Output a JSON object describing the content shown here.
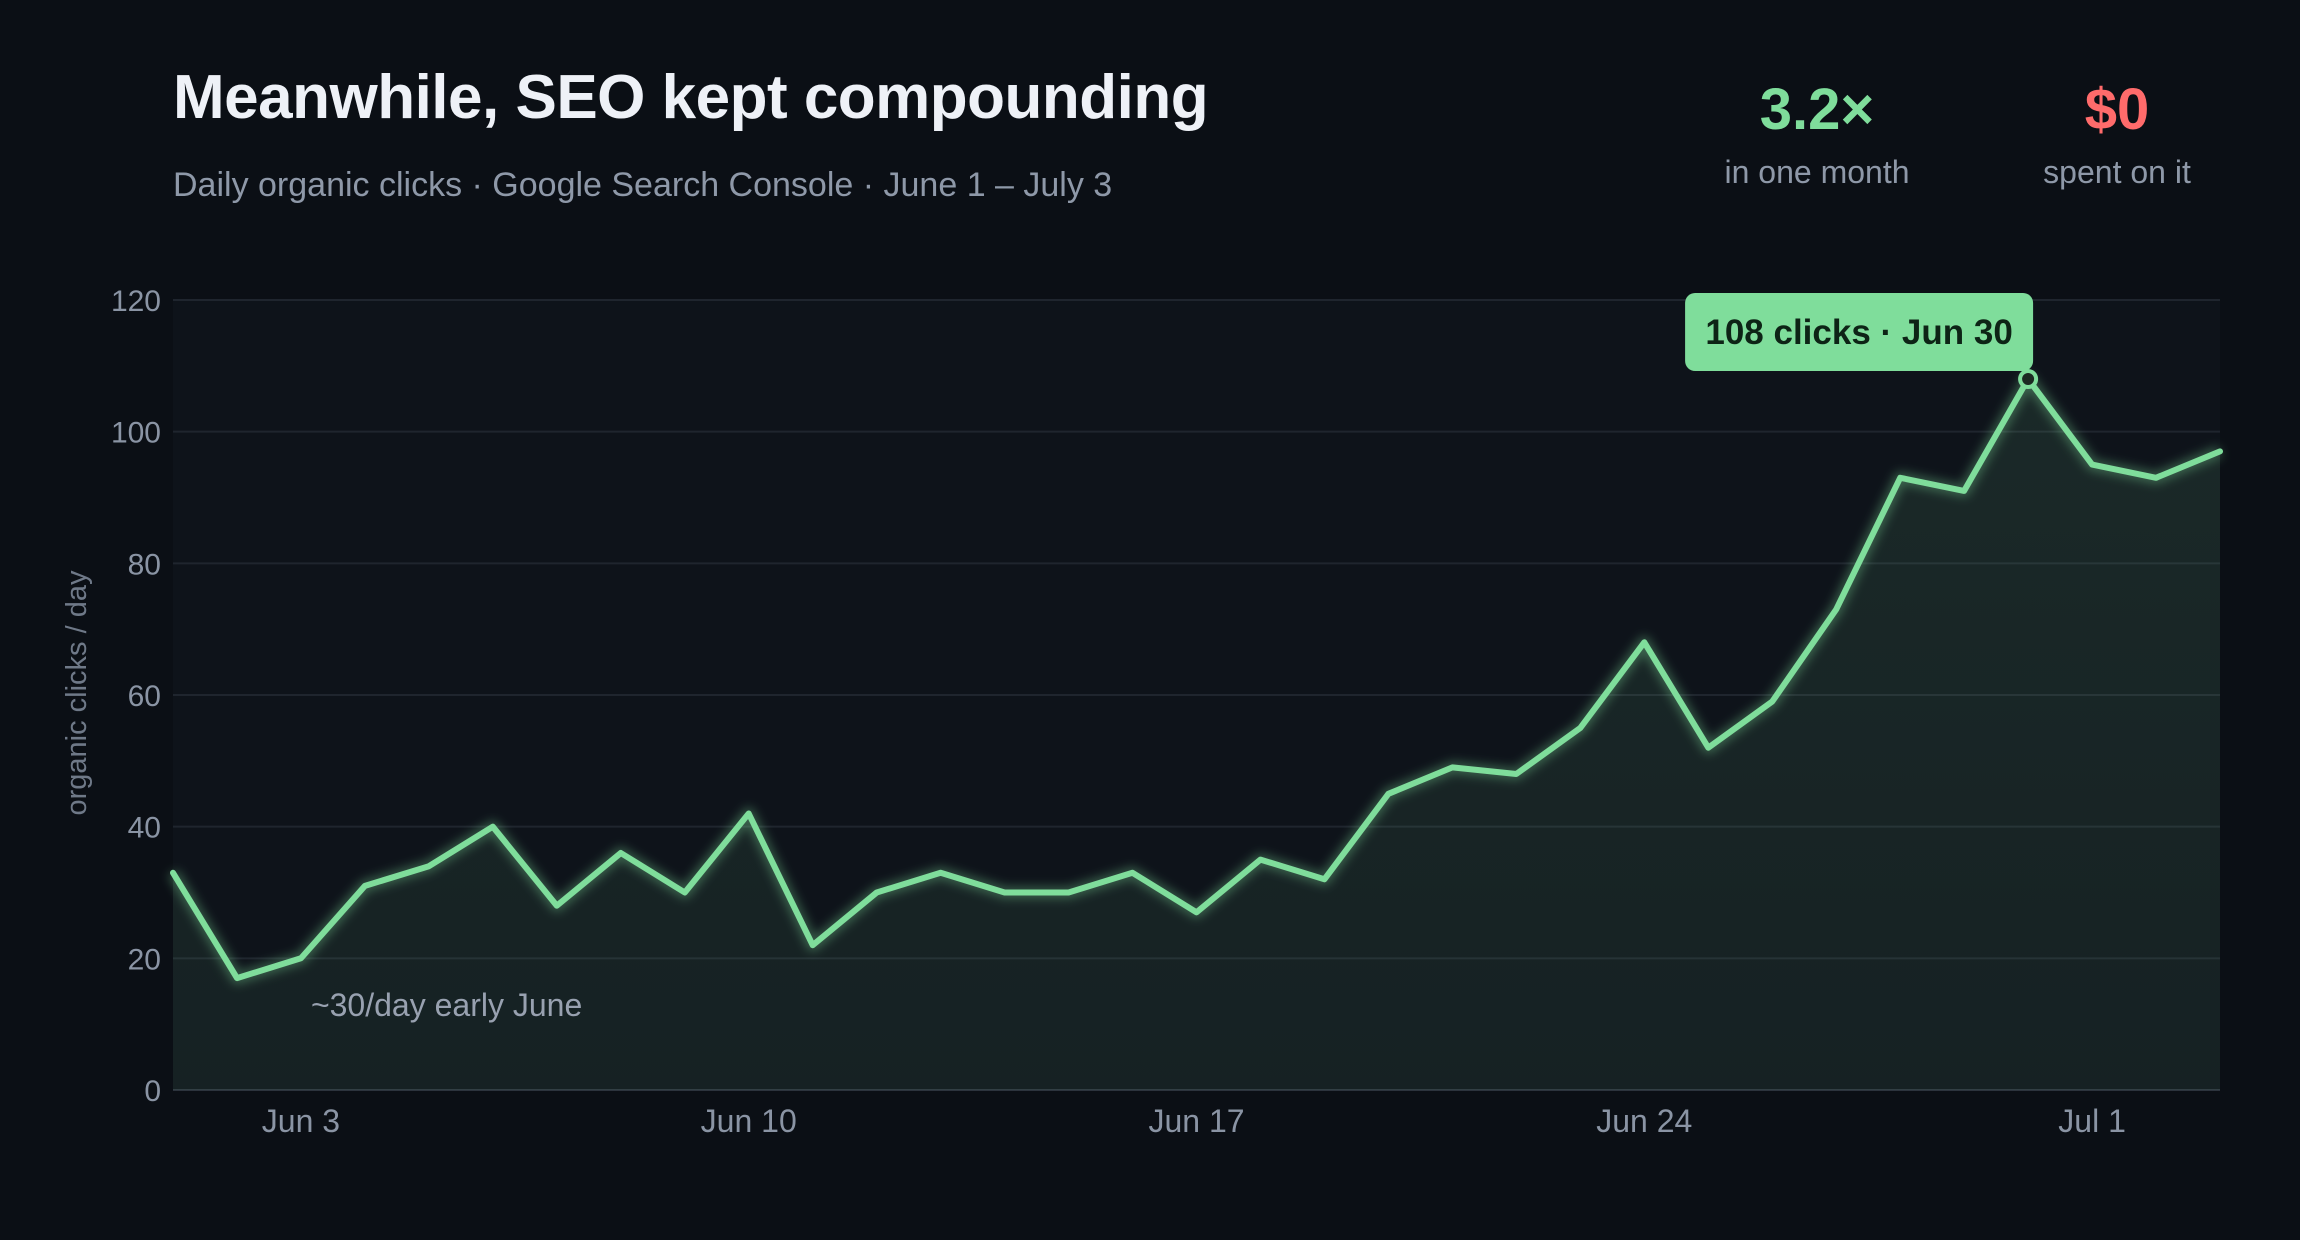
{
  "header": {
    "title": "Meanwhile, SEO kept compounding",
    "subtitle": "Daily organic clicks · Google Search Console · June 1 – July 3"
  },
  "stats": [
    {
      "value": "3.2×",
      "label": "in one month",
      "color": "#7fdd9b"
    },
    {
      "value": "$0",
      "label": "spent on it",
      "color": "#ff6b6b"
    }
  ],
  "chart_data": {
    "type": "area",
    "ylabel": "organic clicks / day",
    "ylim": [
      0,
      120
    ],
    "yticks": [
      0,
      20,
      40,
      60,
      80,
      100,
      120
    ],
    "x_range": [
      "2024-06-01",
      "2024-07-03"
    ],
    "xticks": [
      {
        "date": "2024-06-03",
        "label": "Jun 3"
      },
      {
        "date": "2024-06-10",
        "label": "Jun 10"
      },
      {
        "date": "2024-06-17",
        "label": "Jun 17"
      },
      {
        "date": "2024-06-24",
        "label": "Jun 24"
      },
      {
        "date": "2024-07-01",
        "label": "Jul 1"
      }
    ],
    "grid": true,
    "series": [
      {
        "color": "#7fdd9b",
        "points": [
          {
            "date": "2024-06-01",
            "value": 33
          },
          {
            "date": "2024-06-02",
            "value": 17
          },
          {
            "date": "2024-06-03",
            "value": 20
          },
          {
            "date": "2024-06-04",
            "value": 31
          },
          {
            "date": "2024-06-05",
            "value": 34
          },
          {
            "date": "2024-06-06",
            "value": 40
          },
          {
            "date": "2024-06-07",
            "value": 28
          },
          {
            "date": "2024-06-08",
            "value": 36
          },
          {
            "date": "2024-06-09",
            "value": 30
          },
          {
            "date": "2024-06-10",
            "value": 42
          },
          {
            "date": "2024-06-11",
            "value": 22
          },
          {
            "date": "2024-06-12",
            "value": 30
          },
          {
            "date": "2024-06-13",
            "value": 33
          },
          {
            "date": "2024-06-14",
            "value": 30
          },
          {
            "date": "2024-06-15",
            "value": 30
          },
          {
            "date": "2024-06-16",
            "value": 33
          },
          {
            "date": "2024-06-17",
            "value": 27
          },
          {
            "date": "2024-06-18",
            "value": 35
          },
          {
            "date": "2024-06-19",
            "value": 32
          },
          {
            "date": "2024-06-20",
            "value": 45
          },
          {
            "date": "2024-06-21",
            "value": 49
          },
          {
            "date": "2024-06-22",
            "value": 48
          },
          {
            "date": "2024-06-23",
            "value": 55
          },
          {
            "date": "2024-06-24",
            "value": 68
          },
          {
            "date": "2024-06-25",
            "value": 52
          },
          {
            "date": "2024-06-26",
            "value": 59
          },
          {
            "date": "2024-06-27",
            "value": 73
          },
          {
            "date": "2024-06-28",
            "value": 93
          },
          {
            "date": "2024-06-29",
            "value": 91
          },
          {
            "date": "2024-06-30",
            "value": 108
          },
          {
            "date": "2024-07-01",
            "value": 95
          },
          {
            "date": "2024-07-02",
            "value": 93
          },
          {
            "date": "2024-07-03",
            "value": 97
          }
        ]
      }
    ],
    "annotations": [
      {
        "text": "~30/day early June",
        "date": "2024-06-03",
        "value": 12
      },
      {
        "text": "108 clicks · Jun 30",
        "date": "2024-06-30",
        "value": 108,
        "style": "callout"
      }
    ]
  }
}
